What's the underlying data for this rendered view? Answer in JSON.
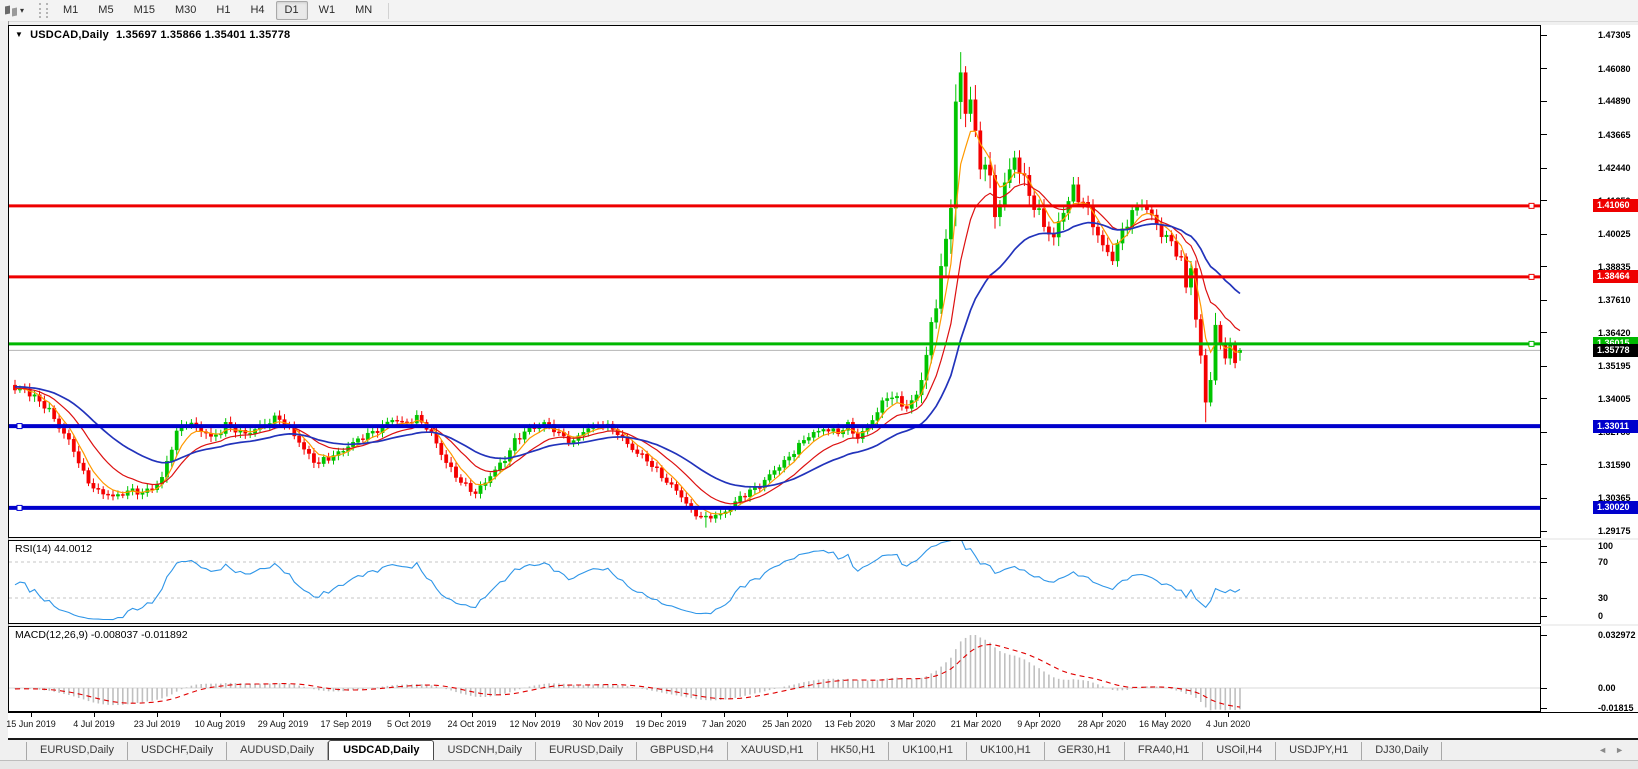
{
  "toolbar": {
    "chart_tool_icon": "chart-type-icon",
    "dropdown_glyph": "▾",
    "timeframes": [
      "M1",
      "M5",
      "M15",
      "M30",
      "H1",
      "H4",
      "D1",
      "W1",
      "MN"
    ],
    "active_timeframe": "D1"
  },
  "chart_header": {
    "dropdown_glyph": "▼",
    "symbol": "USDCAD,Daily",
    "ohlc_text": "1.35697 1.35866 1.35401 1.35778"
  },
  "price_axis": {
    "ticks": [
      "1.47305",
      "1.46080",
      "1.44890",
      "1.43665",
      "1.42440",
      "1.41250",
      "1.40025",
      "1.38835",
      "1.37610",
      "1.36420",
      "1.35195",
      "1.34005",
      "1.32780",
      "1.31590",
      "1.30365",
      "1.29175"
    ],
    "colored_labels": [
      {
        "text": "1.41060",
        "bg": "#ee0000",
        "fg": "#ffffff"
      },
      {
        "text": "1.38464",
        "bg": "#ee0000",
        "fg": "#ffffff"
      },
      {
        "text": "1.36015",
        "bg": "#00b800",
        "fg": "#ffffff"
      },
      {
        "text": "1.35778",
        "bg": "#000000",
        "fg": "#ffffff"
      },
      {
        "text": "1.33011",
        "bg": "#0000cc",
        "fg": "#ffffff"
      },
      {
        "text": "1.30020",
        "bg": "#0000cc",
        "fg": "#ffffff"
      }
    ]
  },
  "rsi_pane": {
    "label": "RSI(14) 44.0012",
    "axis_ticks": [
      "100",
      "70",
      "30",
      "0"
    ],
    "levels": [
      70,
      30
    ],
    "line_color": "#2f96e8",
    "level_color": "#c4c4c4"
  },
  "macd_pane": {
    "label": "MACD(12,26,9) -0.008037 -0.011892",
    "axis_ticks": [
      "0.032972",
      "0.00",
      "-0.01815"
    ],
    "histogram_color": "#c0c0c0",
    "signal_color": "#e00000"
  },
  "date_axis": [
    "15 Jun 2019",
    "4 Jul 2019",
    "23 Jul 2019",
    "10 Aug 2019",
    "29 Aug 2019",
    "17 Sep 2019",
    "5 Oct 2019",
    "24 Oct 2019",
    "12 Nov 2019",
    "30 Nov 2019",
    "19 Dec 2019",
    "7 Jan 2020",
    "25 Jan 2020",
    "13 Feb 2020",
    "3 Mar 2020",
    "21 Mar 2020",
    "9 Apr 2020",
    "28 Apr 2020",
    "16 May 2020",
    "4 Jun 2020"
  ],
  "tabs": {
    "items": [
      "EURUSD,Daily",
      "USDCHF,Daily",
      "AUDUSD,Daily",
      "USDCAD,Daily",
      "USDCNH,Daily",
      "EURUSD,Daily",
      "GBPUSD,H4",
      "XAUUSD,H1",
      "HK50,H1",
      "UK100,H1",
      "UK100,H1",
      "GER30,H1",
      "FRA40,H1",
      "USOil,H4",
      "USDJPY,H1",
      "DJ30,Daily"
    ],
    "active_index": 3,
    "scroll_left": "◄",
    "scroll_right": "►"
  },
  "chart_data": {
    "type": "candlestick",
    "symbol": "USDCAD",
    "timeframe": "Daily",
    "last_candle": {
      "open": 1.35697,
      "high": 1.35866,
      "low": 1.35401,
      "close": 1.35778
    },
    "visible_price_range": [
      1.29175,
      1.47305
    ],
    "up_color": "#00c400",
    "down_color": "#f40000",
    "n_candles": 251,
    "close_keypoints": [
      [
        0,
        1.3425,
        0.5
      ],
      [
        2,
        1.3442,
        0.5
      ],
      [
        5,
        1.339,
        0.5
      ],
      [
        8,
        1.3332,
        0.5
      ],
      [
        11,
        1.3248,
        0.5
      ],
      [
        14,
        1.3125,
        0.5
      ],
      [
        17,
        1.3062,
        0.4
      ],
      [
        20,
        1.304,
        0.4
      ],
      [
        23,
        1.3068,
        0.4
      ],
      [
        26,
        1.3052,
        0.4
      ],
      [
        28,
        1.3078,
        0.4
      ],
      [
        30,
        1.3112,
        0.5
      ],
      [
        33,
        1.3272,
        0.6
      ],
      [
        35,
        1.3322,
        0.5
      ],
      [
        38,
        1.3282,
        0.5
      ],
      [
        40,
        1.3258,
        0.5
      ],
      [
        43,
        1.3305,
        0.5
      ],
      [
        46,
        1.3272,
        0.5
      ],
      [
        49,
        1.3292,
        0.5
      ],
      [
        52,
        1.3312,
        0.5
      ],
      [
        54,
        1.3338,
        0.5
      ],
      [
        56,
        1.3292,
        0.5
      ],
      [
        59,
        1.3212,
        0.5
      ],
      [
        62,
        1.3168,
        0.5
      ],
      [
        65,
        1.3188,
        0.4
      ],
      [
        68,
        1.3232,
        0.4
      ],
      [
        71,
        1.3256,
        0.4
      ],
      [
        74,
        1.3292,
        0.4
      ],
      [
        77,
        1.3322,
        0.4
      ],
      [
        79,
        1.3312,
        0.4
      ],
      [
        82,
        1.3332,
        0.4
      ],
      [
        84,
        1.3292,
        0.4
      ],
      [
        86,
        1.3242,
        0.5
      ],
      [
        88,
        1.3172,
        0.5
      ],
      [
        90,
        1.3112,
        0.5
      ],
      [
        92,
        1.3082,
        0.4
      ],
      [
        94,
        1.3062,
        0.4
      ],
      [
        96,
        1.3092,
        0.4
      ],
      [
        99,
        1.3162,
        0.5
      ],
      [
        102,
        1.3242,
        0.5
      ],
      [
        105,
        1.3292,
        0.4
      ],
      [
        108,
        1.3312,
        0.4
      ],
      [
        111,
        1.3272,
        0.4
      ],
      [
        114,
        1.3246,
        0.4
      ],
      [
        117,
        1.3292,
        0.4
      ],
      [
        120,
        1.3312,
        0.4
      ],
      [
        123,
        1.3272,
        0.4
      ],
      [
        126,
        1.3222,
        0.4
      ],
      [
        129,
        1.3172,
        0.4
      ],
      [
        132,
        1.3122,
        0.4
      ],
      [
        135,
        1.3062,
        0.4
      ],
      [
        138,
        1.2996,
        0.4
      ],
      [
        141,
        1.2962,
        0.35
      ],
      [
        144,
        1.2978,
        0.35
      ],
      [
        147,
        1.3022,
        0.4
      ],
      [
        150,
        1.3062,
        0.4
      ],
      [
        153,
        1.3102,
        0.4
      ],
      [
        156,
        1.3152,
        0.4
      ],
      [
        159,
        1.3212,
        0.4
      ],
      [
        162,
        1.3262,
        0.4
      ],
      [
        165,
        1.3296,
        0.4
      ],
      [
        168,
        1.3272,
        0.4
      ],
      [
        170,
        1.3306,
        0.4
      ],
      [
        172,
        1.3262,
        0.4
      ],
      [
        174,
        1.3292,
        0.4
      ],
      [
        176,
        1.3352,
        0.5
      ],
      [
        178,
        1.3422,
        0.6
      ],
      [
        180,
        1.3392,
        0.6
      ],
      [
        182,
        1.3362,
        0.6
      ],
      [
        184,
        1.3422,
        0.7
      ],
      [
        186,
        1.3552,
        0.9
      ],
      [
        188,
        1.3752,
        1.2
      ],
      [
        190,
        1.3982,
        1.5
      ],
      [
        191,
        1.4152,
        1.8
      ],
      [
        192,
        1.4482,
        2.0
      ],
      [
        193,
        1.4562,
        2.0
      ],
      [
        194,
        1.4422,
        1.9
      ],
      [
        195,
        1.4512,
        1.7
      ],
      [
        196,
        1.4362,
        1.6
      ],
      [
        197,
        1.4252,
        1.5
      ],
      [
        198,
        1.4302,
        1.4
      ],
      [
        199,
        1.4182,
        1.4
      ],
      [
        200,
        1.4052,
        1.3
      ],
      [
        202,
        1.4182,
        1.2
      ],
      [
        204,
        1.4302,
        1.2
      ],
      [
        206,
        1.4182,
        1.1
      ],
      [
        208,
        1.4102,
        1.0
      ],
      [
        210,
        1.4052,
        1.0
      ],
      [
        212,
        1.3982,
        0.9
      ],
      [
        214,
        1.4082,
        0.9
      ],
      [
        216,
        1.4172,
        0.8
      ],
      [
        218,
        1.4122,
        0.8
      ],
      [
        220,
        1.4032,
        0.8
      ],
      [
        222,
        1.3962,
        0.8
      ],
      [
        224,
        1.3922,
        0.7
      ],
      [
        226,
        1.4002,
        0.7
      ],
      [
        228,
        1.4082,
        0.7
      ],
      [
        230,
        1.4122,
        0.6
      ],
      [
        232,
        1.4062,
        0.6
      ],
      [
        234,
        1.4002,
        0.6
      ],
      [
        236,
        1.3982,
        0.6
      ],
      [
        238,
        1.3902,
        0.7
      ],
      [
        239,
        1.38,
        0.7
      ],
      [
        240,
        1.388,
        0.8
      ],
      [
        241,
        1.369,
        0.8
      ],
      [
        242,
        1.356,
        0.9
      ],
      [
        243,
        1.3402,
        0.9
      ],
      [
        244,
        1.3482,
        0.8
      ],
      [
        245,
        1.3642,
        0.8
      ],
      [
        246,
        1.3602,
        0.7
      ],
      [
        247,
        1.3556,
        0.6
      ],
      [
        248,
        1.3592,
        0.6
      ],
      [
        249,
        1.3542,
        0.5
      ],
      [
        250,
        1.35778,
        0.5
      ]
    ],
    "spikes": [
      {
        "i": 193,
        "high": 1.4668
      },
      {
        "i": 141,
        "low": 1.293
      },
      {
        "i": 243,
        "low": 1.3315
      },
      {
        "i": 245,
        "high": 1.3715
      }
    ],
    "moving_averages": [
      {
        "name": "fast",
        "period": 5,
        "color": "#ff9900",
        "width": 1.2
      },
      {
        "name": "medium",
        "period": 13,
        "color": "#dd1111",
        "width": 1.2
      },
      {
        "name": "slow",
        "period": 30,
        "color": "#2233bb",
        "width": 1.7
      }
    ],
    "horizontal_lines": [
      {
        "price": 1.4106,
        "color": "#ee0000",
        "thickness": 3,
        "handle": "right"
      },
      {
        "price": 1.38464,
        "color": "#ee0000",
        "thickness": 3,
        "handle": "right"
      },
      {
        "price": 1.36015,
        "color": "#00b800",
        "thickness": 3,
        "handle": "right"
      },
      {
        "price": 1.33011,
        "color": "#0000cc",
        "thickness": 4,
        "handle": "left"
      },
      {
        "price": 1.3002,
        "color": "#0000cc",
        "thickness": 4,
        "handle": "left"
      }
    ],
    "bid_line": {
      "price": 1.35778,
      "color": "#b4b4b4"
    },
    "indicators": [
      {
        "name": "RSI",
        "params": "14",
        "value": "44.0012"
      },
      {
        "name": "MACD",
        "params": "12,26,9",
        "values": [
          "-0.008037",
          "-0.011892"
        ]
      }
    ]
  }
}
